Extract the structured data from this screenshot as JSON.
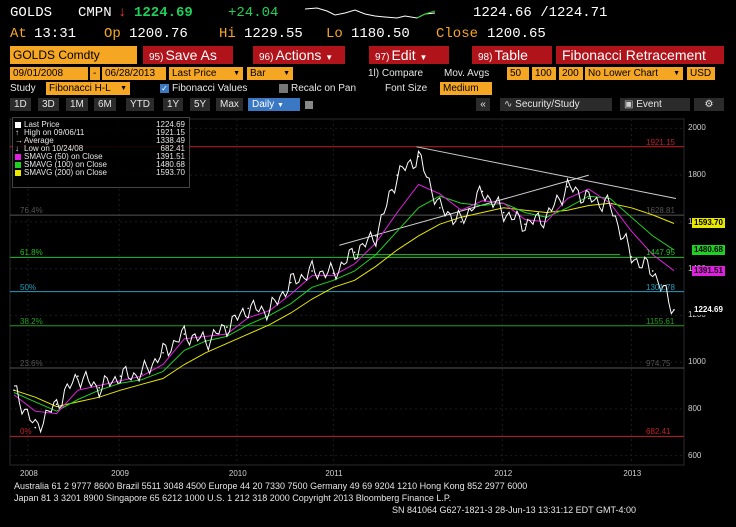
{
  "header": {
    "ticker": "GOLDS",
    "cmpn_label": "CMPN",
    "down_arrow": "↓",
    "last": "1224.69",
    "change": "+24.04",
    "bid_ask": "1224.66 /1224.71",
    "at_label": "At",
    "at_time": "13:31",
    "op_label": "Op",
    "op_value": "1200.76",
    "hi_label": "Hi",
    "hi_value": "1229.55",
    "lo_label": "Lo",
    "lo_value": "1180.50",
    "close_label": "Close",
    "close_value": "1200.65"
  },
  "menubar": {
    "security": "GOLDS Comdty",
    "save": {
      "num": "95)",
      "label": "Save As"
    },
    "actions": {
      "num": "96)",
      "label": "Actions"
    },
    "edit": {
      "num": "97)",
      "label": "Edit"
    },
    "table": {
      "num": "98)",
      "label": "Table"
    },
    "title": "Fibonacci Retracement"
  },
  "settings": {
    "start_date": "09/01/2008",
    "dash": "-",
    "end_date": "06/28/2013",
    "field": "Last Price",
    "chart_type": "Bar",
    "compare": "1l) Compare",
    "mov_avgs_label": "Mov. Avgs",
    "mov_avg_1": "50",
    "mov_avg_2": "100",
    "mov_avg_3": "200",
    "lower_chart": "No Lower Chart",
    "currency": "USD",
    "study_label": "Study",
    "study_value": "Fibonacci H-L",
    "fib_values": "Fibonacci Values",
    "recalc": "Recalc on Pan",
    "font_size_label": "Font Size",
    "font_size_value": "Medium"
  },
  "tabs": {
    "periods": [
      "1D",
      "3D",
      "1M",
      "6M",
      "YTD",
      "1Y",
      "5Y",
      "Max"
    ],
    "frequency": "Daily",
    "security_study": "Security/Study",
    "event": "Event"
  },
  "legend": {
    "items": [
      {
        "label": "Last Price",
        "value": "1224.69",
        "color": "#ffffff",
        "icon": "square-icon"
      },
      {
        "label": "High on 09/06/11",
        "value": "1921.15",
        "color": "#ffffff",
        "icon": "up-arrow-icon"
      },
      {
        "label": "Average",
        "value": "1338.49",
        "color": "#ffffff",
        "icon": "arrow-right-icon"
      },
      {
        "label": "Low on 10/24/08",
        "value": "682.41",
        "color": "#ffffff",
        "icon": "down-arrow-icon"
      },
      {
        "label": "SMAVG (50) on Close",
        "value": "1391.51",
        "color": "#e020e0",
        "icon": "square-icon"
      },
      {
        "label": "SMAVG (100) on Close",
        "value": "1480.68",
        "color": "#20d020",
        "icon": "square-icon"
      },
      {
        "label": "SMAVG (200) on Close",
        "value": "1593.70",
        "color": "#e8e800",
        "icon": "square-icon"
      }
    ]
  },
  "fib_levels": [
    {
      "pct": "100%",
      "value": "1921.15",
      "color": "#c0202a"
    },
    {
      "pct": "76.4%",
      "value": "1628.81",
      "color": "#555555"
    },
    {
      "pct": "61.8%",
      "value": "1447.95",
      "color": "#20c020"
    },
    {
      "pct": "50%",
      "value": "1301.78",
      "color": "#20a0c0"
    },
    {
      "pct": "38.2%",
      "value": "1155.61",
      "color": "#20a020"
    },
    {
      "pct": "23.6%",
      "value": "974.75",
      "color": "#555555"
    },
    {
      "pct": "0%",
      "value": "682.41",
      "color": "#c0202a"
    }
  ],
  "price_tags": [
    {
      "value": "1593.70",
      "color": "#e8e800"
    },
    {
      "value": "1480.68",
      "color": "#20d020"
    },
    {
      "value": "1391.51",
      "color": "#e020e0"
    },
    {
      "value": "1224.69",
      "color": "#ffffff"
    }
  ],
  "chart_data": {
    "type": "line",
    "xlabel": "",
    "ylabel": "",
    "x_ticks": [
      "2008",
      "2009",
      "2010",
      "2011",
      "2012",
      "2013"
    ],
    "y_ticks": [
      2000,
      1800,
      1600,
      1400,
      1200,
      1000,
      800,
      600
    ],
    "ylim": [
      560,
      2040
    ],
    "x": [
      "2008-09",
      "2008-10",
      "2008-12",
      "2009-02",
      "2009-04",
      "2009-06",
      "2009-08",
      "2009-10",
      "2009-12",
      "2010-02",
      "2010-04",
      "2010-06",
      "2010-08",
      "2010-10",
      "2010-12",
      "2011-02",
      "2011-04",
      "2011-06",
      "2011-08",
      "2011-09",
      "2011-10",
      "2011-12",
      "2012-02",
      "2012-04",
      "2012-06",
      "2012-08",
      "2012-10",
      "2012-12",
      "2013-02",
      "2013-04",
      "2013-05",
      "2013-06"
    ],
    "series": [
      {
        "name": "Last Price",
        "color": "#ffffff",
        "values": [
          880,
          720,
          820,
          940,
          890,
          940,
          950,
          1040,
          1120,
          1090,
          1150,
          1230,
          1220,
          1340,
          1390,
          1380,
          1470,
          1540,
          1800,
          1880,
          1660,
          1600,
          1730,
          1640,
          1590,
          1620,
          1750,
          1700,
          1670,
          1450,
          1390,
          1224
        ]
      },
      {
        "name": "SMAVG (50) on Close",
        "color": "#e020e0",
        "values": [
          860,
          790,
          780,
          880,
          900,
          920,
          940,
          990,
          1100,
          1110,
          1120,
          1190,
          1220,
          1290,
          1370,
          1370,
          1420,
          1510,
          1640,
          1760,
          1720,
          1650,
          1690,
          1680,
          1610,
          1600,
          1700,
          1740,
          1680,
          1560,
          1460,
          1391
        ]
      },
      {
        "name": "SMAVG (100) on Close",
        "color": "#20d020",
        "values": [
          870,
          830,
          790,
          840,
          880,
          910,
          925,
          960,
          1050,
          1090,
          1110,
          1160,
          1200,
          1250,
          1320,
          1350,
          1390,
          1460,
          1560,
          1660,
          1710,
          1680,
          1670,
          1680,
          1640,
          1620,
          1660,
          1710,
          1700,
          1620,
          1540,
          1480
        ]
      },
      {
        "name": "SMAVG (200) on Close",
        "color": "#e8e800",
        "values": [
          880,
          850,
          810,
          830,
          850,
          880,
          905,
          930,
          990,
          1040,
          1080,
          1120,
          1160,
          1210,
          1270,
          1320,
          1350,
          1410,
          1480,
          1540,
          1590,
          1620,
          1640,
          1660,
          1650,
          1640,
          1650,
          1670,
          1680,
          1660,
          1630,
          1593
        ]
      }
    ]
  },
  "footer": {
    "line1": "Australia 61 2 9777 8600 Brazil 5511 3048 4500 Europe 44 20 7330 7500 Germany 49 69 9204 1210 Hong Kong 852 2977 6000",
    "line2": "Japan 81 3 3201 8900        Singapore 65 6212 1000        U.S. 1 212 318 2000        Copyright 2013 Bloomberg Finance L.P.",
    "line3": "SN 841064 G627-1821-3 28-Jun-13 13:31:12 EDT  GMT-4:00"
  }
}
